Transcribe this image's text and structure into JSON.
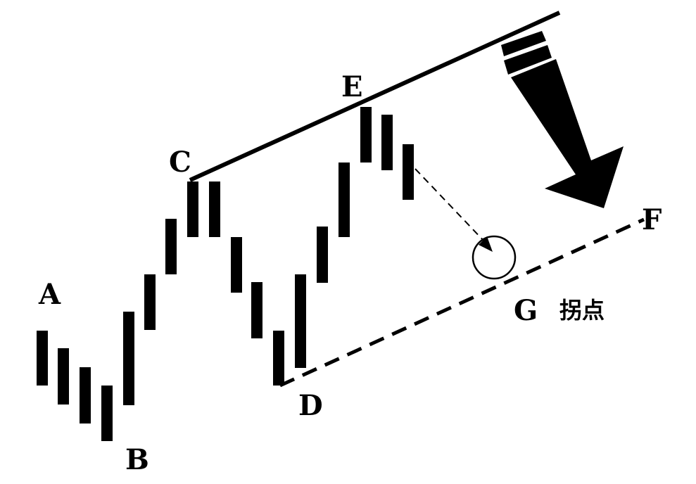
{
  "labels": {
    "a": "A",
    "b": "B",
    "c": "C",
    "d": "D",
    "e": "E",
    "f": "F",
    "g": "G",
    "turning_point": "拐点"
  },
  "colors": {
    "ink": "#000000",
    "background": "#ffffff"
  },
  "icons": {
    "trend_arrow": "down-right-arrow-icon"
  }
}
